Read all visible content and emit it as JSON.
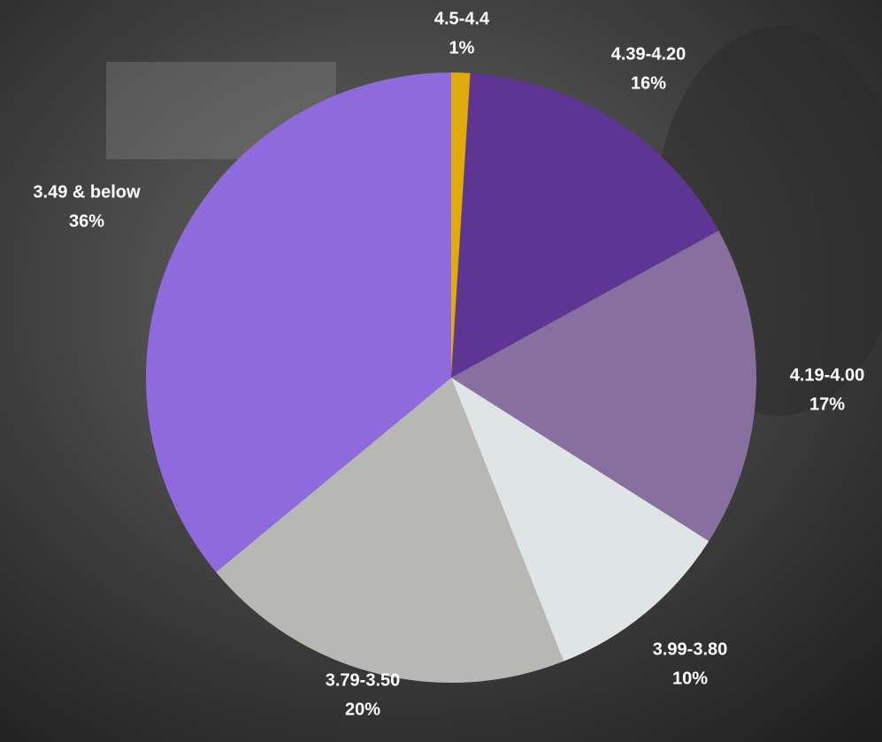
{
  "chart_data": {
    "type": "pie",
    "categories": [
      "4.5-4.4",
      "4.39-4.20",
      "4.19-4.00",
      "3.99-3.80",
      "3.79-3.50",
      "3.49 & below"
    ],
    "values": [
      1,
      16,
      17,
      10,
      20,
      36
    ],
    "value_labels": [
      "1%",
      "16%",
      "17%",
      "10%",
      "20%",
      "36%"
    ],
    "colors": [
      "#e0a90c",
      "#5e3494",
      "#87709f",
      "#dfe4e4",
      "#b7b8b3",
      "#8f6adc"
    ]
  }
}
